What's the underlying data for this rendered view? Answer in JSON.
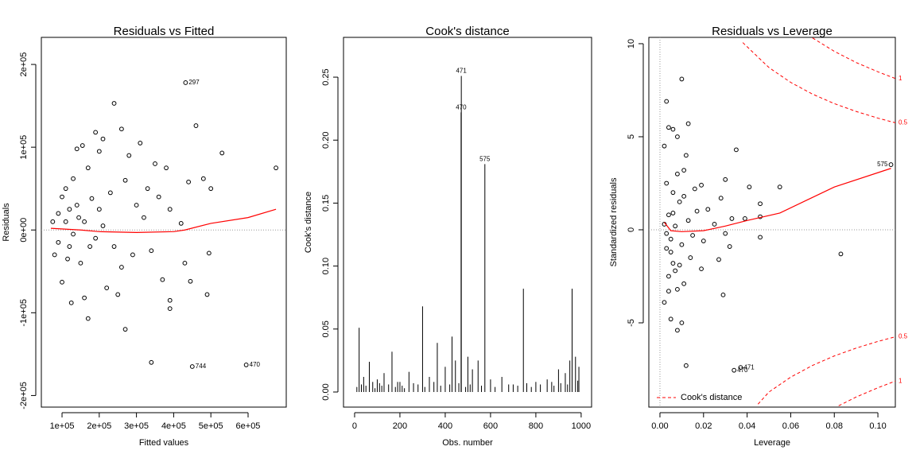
{
  "chart_data": [
    {
      "type": "scatter",
      "title": "Residuals vs Fitted",
      "x_label": "Fitted values",
      "y_label": "Residuals",
      "xlim": [
        44400,
        702600
      ],
      "ylim": [
        -214000,
        232700
      ],
      "xticks": [
        {
          "value": 100000.0,
          "label": "1e+05"
        },
        {
          "value": 200000.0,
          "label": "2e+05"
        },
        {
          "value": 300000.0,
          "label": "3e+05"
        },
        {
          "value": 400000.0,
          "label": "4e+05"
        },
        {
          "value": 500000.0,
          "label": "5e+05"
        },
        {
          "value": 600000.0,
          "label": "6e+05"
        }
      ],
      "yticks": [
        {
          "value": -200000.0,
          "label": "-2e+05"
        },
        {
          "value": -100000.0,
          "label": "-1e+05"
        },
        {
          "value": 0,
          "label": "0e+00"
        },
        {
          "value": 100000.0,
          "label": "1e+05"
        },
        {
          "value": 200000.0,
          "label": "2e+05"
        }
      ],
      "hline": 0,
      "smooth_color": "#ff0000",
      "points": {
        "x": [
          675000.0,
          530000.0,
          460000.0,
          240000.0,
          260000.0,
          190000.0,
          210000.0,
          310000.0,
          200000.0,
          350000.0,
          380000.0,
          440000.0,
          480000.0,
          500000.0,
          390000.0,
          420000.0,
          430000.0,
          445000.0,
          490000.0,
          495000.0,
          390000.0,
          390000.0,
          370000.0,
          340000.0,
          270000.0,
          170000.0,
          250000.0,
          220000.0,
          160000.0,
          125000.0,
          100000.0,
          80000.0,
          75000.0,
          90000.0,
          100000.0,
          110000.0,
          130000.0,
          140000.0,
          155000.0,
          170000.0,
          180000.0,
          230000.0,
          270000.0,
          300000.0,
          320000.0,
          340000.0,
          290000.0,
          240000.0,
          150000.0,
          120000.0,
          110000.0,
          130000.0,
          160000.0,
          190000.0,
          210000.0,
          120000.0,
          140000.0,
          260000.0,
          360000.0,
          280000.0,
          330000.0,
          90000.0,
          115000.0,
          145000.0,
          175000.0,
          200000.0
        ],
        "values": [
          75000.0,
          93000.0,
          126000.0,
          153000.0,
          122000.0,
          118000.0,
          110000.0,
          105000.0,
          95000.0,
          80000.0,
          75000.0,
          58000.0,
          62000.0,
          50000.0,
          25000.0,
          8000.0,
          -40000.0,
          -62000.0,
          -78000.0,
          -28000.0,
          -85000.0,
          -95000.0,
          -60000.0,
          -160000.0,
          -120000.0,
          -107000.0,
          -78000.0,
          -70000.0,
          -82000.0,
          -88000.0,
          -63000.0,
          -30000.0,
          10000.0,
          20000.0,
          40000.0,
          50000.0,
          62000.0,
          98000.0,
          102000.0,
          75000.0,
          38000.0,
          45000.0,
          60000.0,
          30000.0,
          15000.0,
          -25000.0,
          -30000.0,
          -20000.0,
          -40000.0,
          -20000.0,
          10000.0,
          -5000.0,
          10000.0,
          -10000.0,
          5000.0,
          25000.0,
          30000.0,
          -45000.0,
          40000.0,
          90000.0,
          50000.0,
          -15000.0,
          -35000.0,
          15000.0,
          -20000.0,
          25000.0
        ]
      },
      "labeled_points": {
        "x": [
          432000.0,
          450000.0,
          595000.0
        ],
        "values": [
          178000.0,
          -165000.0,
          -163000.0
        ],
        "labels": [
          "297",
          "744",
          "470"
        ]
      },
      "smooth": {
        "x": [
          70000.0,
          150000.0,
          200000.0,
          300000.0,
          400000.0,
          430000.0,
          500000.0,
          600000.0,
          675000.0
        ],
        "values": [
          2000.0,
          0,
          -2000.0,
          -3000.0,
          -2000.0,
          0,
          8000.0,
          15000.0,
          25000.0
        ]
      }
    },
    {
      "type": "spike",
      "title": "Cook's distance",
      "x_label": "Obs. number",
      "y_label": "Cook's distance",
      "xlim": [
        -49,
        1046
      ],
      "ylim": [
        -0.012,
        0.2816
      ],
      "xticks": [
        0,
        200,
        400,
        600,
        800,
        1000
      ],
      "yticks": [
        {
          "value": 0,
          "label": "0.00"
        },
        {
          "value": 0.05,
          "label": "0.05"
        },
        {
          "value": 0.1,
          "label": "0.10"
        },
        {
          "value": 0.15,
          "label": "0.15"
        },
        {
          "value": 0.2,
          "label": "0.20"
        },
        {
          "value": 0.25,
          "label": "0.25"
        }
      ],
      "spikes": {
        "x": [
          20,
          40,
          65,
          100,
          130,
          165,
          200,
          240,
          300,
          330,
          365,
          400,
          430,
          445,
          500,
          520,
          545,
          600,
          650,
          700,
          745,
          800,
          850,
          900,
          930,
          950,
          960,
          975,
          990,
          10,
          30,
          50,
          80,
          90,
          110,
          120,
          150,
          180,
          190,
          210,
          220,
          260,
          280,
          310,
          350,
          380,
          420,
          460,
          490,
          510,
          560,
          620,
          680,
          720,
          760,
          780,
          820,
          870,
          880,
          910,
          940,
          985
        ],
        "values": [
          0.051,
          0.012,
          0.024,
          0.01,
          0.015,
          0.032,
          0.008,
          0.016,
          0.068,
          0.012,
          0.039,
          0.02,
          0.044,
          0.025,
          0.028,
          0.018,
          0.025,
          0.01,
          0.012,
          0.006,
          0.082,
          0.008,
          0.01,
          0.018,
          0.015,
          0.025,
          0.082,
          0.028,
          0.02,
          0.004,
          0.006,
          0.005,
          0.008,
          0.003,
          0.007,
          0.005,
          0.006,
          0.004,
          0.008,
          0.005,
          0.003,
          0.007,
          0.006,
          0.004,
          0.008,
          0.005,
          0.006,
          0.007,
          0.004,
          0.006,
          0.005,
          0.004,
          0.006,
          0.005,
          0.007,
          0.004,
          0.006,
          0.008,
          0.005,
          0.007,
          0.006,
          0.009
        ]
      },
      "labeled_spikes": {
        "x": [
          471,
          470,
          575
        ],
        "values": [
          0.251,
          0.222,
          0.181
        ],
        "labels": [
          "471",
          "470",
          "575"
        ]
      }
    },
    {
      "type": "scatter",
      "title": "Residuals vs Leverage",
      "x_label": "Leverage",
      "y_label": "Standardized residuals",
      "xlim": [
        -0.0051,
        0.108
      ],
      "ylim": [
        -9.53,
        10.34
      ],
      "xticks": [
        {
          "value": 0,
          "label": "0.00"
        },
        {
          "value": 0.02,
          "label": "0.02"
        },
        {
          "value": 0.04,
          "label": "0.04"
        },
        {
          "value": 0.06,
          "label": "0.06"
        },
        {
          "value": 0.08,
          "label": "0.08"
        },
        {
          "value": 0.1,
          "label": "0.10"
        }
      ],
      "yticks": [
        -5,
        0,
        5,
        10
      ],
      "hline": 0,
      "vline": 0,
      "smooth_color": "#ff0000",
      "points": {
        "x": [
          0.003,
          0.01,
          0.004,
          0.006,
          0.013,
          0.008,
          0.002,
          0.035,
          0.012,
          0.011,
          0.019,
          0.03,
          0.041,
          0.055,
          0.028,
          0.022,
          0.046,
          0.033,
          0.039,
          0.046,
          0.025,
          0.03,
          0.046,
          0.032,
          0.083,
          0.027,
          0.029,
          0.019,
          0.011,
          0.008,
          0.004,
          0.002,
          0.005,
          0.008,
          0.01,
          0.012,
          0.004,
          0.006,
          0.003,
          0.005,
          0.007,
          0.004,
          0.009,
          0.006,
          0.003,
          0.008,
          0.005,
          0.01,
          0.013,
          0.015,
          0.017,
          0.014,
          0.002,
          0.003,
          0.007,
          0.011,
          0.016,
          0.02,
          0.009,
          0.006
        ],
        "values": [
          6.9,
          8.1,
          5.5,
          5.4,
          5.7,
          5.0,
          4.5,
          4.3,
          4.0,
          3.2,
          2.4,
          2.7,
          2.3,
          2.3,
          1.7,
          1.1,
          1.4,
          0.6,
          0.6,
          0.7,
          0.3,
          -0.2,
          -0.4,
          -0.9,
          -1.3,
          -1.6,
          -3.5,
          -2.1,
          -2.9,
          -3.2,
          -3.3,
          -3.9,
          -4.8,
          -5.4,
          -5.0,
          -7.3,
          -2.5,
          -1.8,
          -1.0,
          -0.5,
          0.2,
          0.8,
          1.5,
          2.0,
          2.5,
          3.0,
          -1.2,
          -0.8,
          0.5,
          -0.3,
          1.0,
          -1.5,
          0.3,
          -0.2,
          -2.2,
          1.8,
          2.2,
          -0.6,
          -1.9,
          0.9
        ]
      },
      "labeled_points": {
        "x": [
          0.106,
          0.034,
          0.037
        ],
        "values": [
          3.5,
          -7.55,
          -7.4
        ],
        "labels": [
          "575",
          "470",
          "471"
        ]
      },
      "smooth": {
        "x": [
          0.002,
          0.005,
          0.01,
          0.02,
          0.03,
          0.04,
          0.055,
          0.08,
          0.106
        ],
        "values": [
          0.4,
          -0.05,
          -0.1,
          -0.05,
          0.2,
          0.5,
          0.9,
          2.3,
          3.3
        ]
      },
      "contours": [
        {
          "label": "1",
          "x": [
            0.07,
            0.08,
            0.09,
            0.1,
            0.108
          ],
          "values": [
            10.31,
            9.59,
            8.99,
            8.49,
            8.13
          ]
        },
        {
          "label": "0.5",
          "x": [
            0.038,
            0.05,
            0.06,
            0.07,
            0.08,
            0.09,
            0.1,
            0.108
          ],
          "values": [
            10.06,
            8.72,
            7.92,
            7.29,
            6.78,
            6.36,
            6.0,
            5.75
          ]
        },
        {
          "label": "0.5",
          "x": [
            0.045,
            0.05,
            0.06,
            0.07,
            0.08,
            0.09,
            0.1,
            0.108
          ],
          "values": [
            -9.37,
            -8.72,
            -7.92,
            -7.29,
            -6.78,
            -6.36,
            -6.0,
            -5.75
          ]
        },
        {
          "label": "1",
          "x": [
            0.082,
            0.09,
            0.1,
            0.108
          ],
          "values": [
            -9.46,
            -8.99,
            -8.49,
            -8.13
          ]
        }
      ],
      "legend": {
        "label": "Cook's distance",
        "position": "bottomleft"
      }
    }
  ]
}
